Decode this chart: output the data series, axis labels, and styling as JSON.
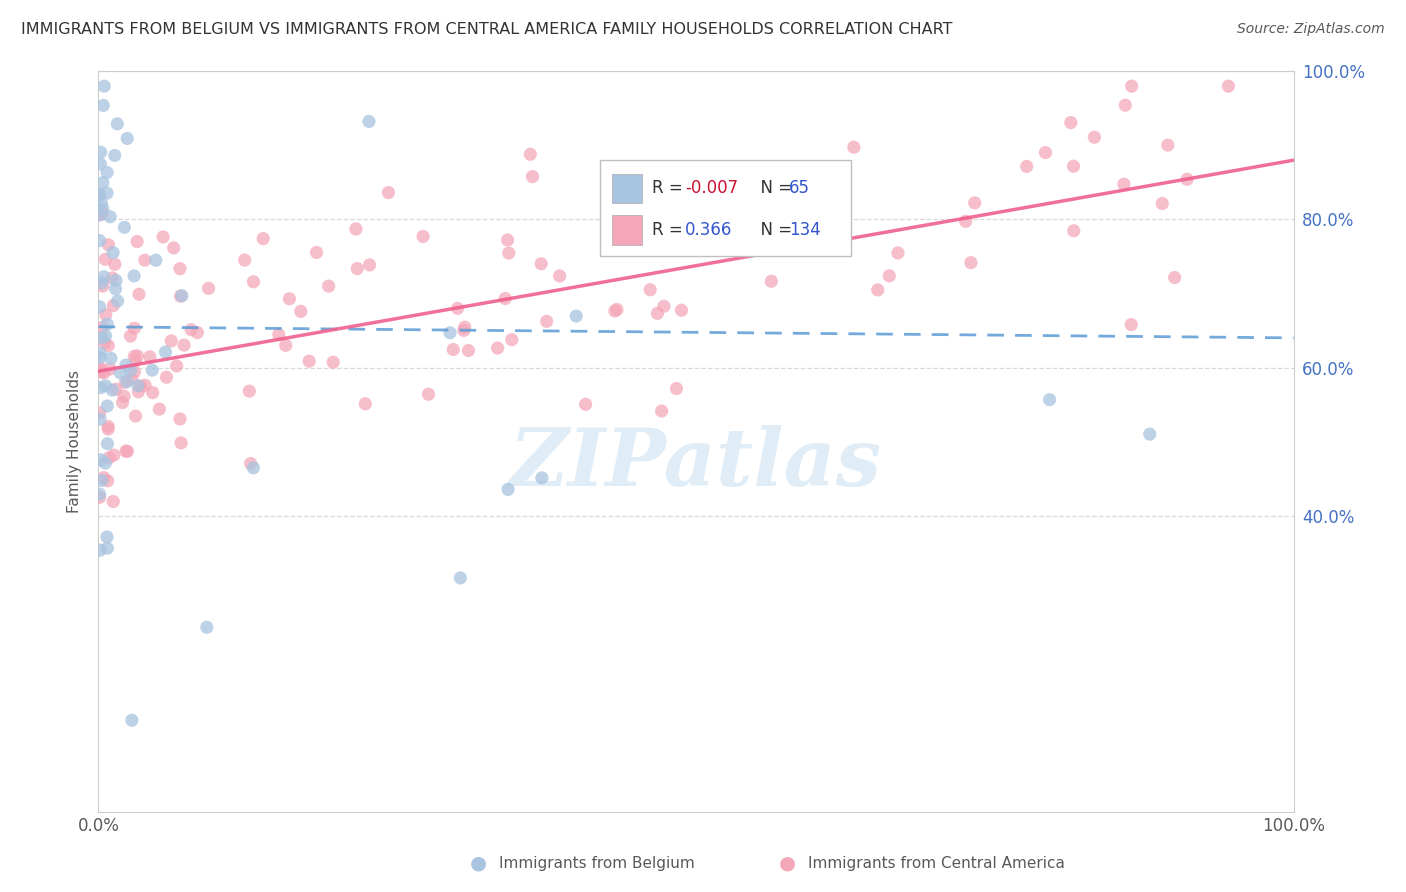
{
  "title": "IMMIGRANTS FROM BELGIUM VS IMMIGRANTS FROM CENTRAL AMERICA FAMILY HOUSEHOLDS CORRELATION CHART",
  "source": "Source: ZipAtlas.com",
  "ylabel": "Family Households",
  "belgium_color": "#a8c4e0",
  "central_america_color": "#f4a7b9",
  "belgium_line_color": "#5b9bd5",
  "central_america_line_color": "#f06090",
  "R_belgium": -0.007,
  "N_belgium": 65,
  "R_central_america": 0.366,
  "N_central_america": 134,
  "background_color": "#ffffff",
  "tick_color": "#4472c4",
  "label_color": "#595959",
  "grid_color": "#d9d9d9",
  "legend_border_color": "#bfbfbf",
  "watermark_color": "#c8dff0",
  "yticks": [
    0.4,
    0.6,
    0.8,
    1.0
  ],
  "ytick_labels": [
    "40.0%",
    "60.0%",
    "80.0%",
    "100.0%"
  ],
  "xticks": [
    0.0,
    1.0
  ],
  "xtick_labels": [
    "0.0%",
    "100.0%"
  ],
  "bel_line_y0": 0.655,
  "bel_line_y1": 0.64,
  "ca_line_y0": 0.595,
  "ca_line_y1": 0.88
}
